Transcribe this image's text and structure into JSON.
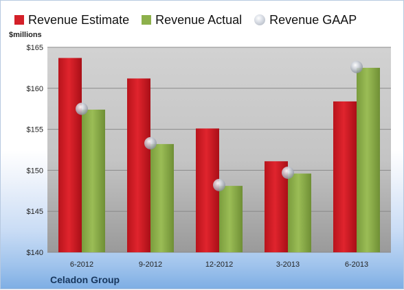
{
  "legend": {
    "estimate_label": "Revenue Estimate",
    "actual_label": "Revenue Actual",
    "gaap_label": "Revenue GAAP"
  },
  "unit_label": "$millions",
  "company_label": "Celadon Group",
  "colors": {
    "estimate": "#d42029",
    "actual": "#8db04b",
    "gaap": "#c4c8d0"
  },
  "chart_data": {
    "type": "bar",
    "categories": [
      "6-2012",
      "9-2012",
      "12-2012",
      "3-2013",
      "6-2013"
    ],
    "series": [
      {
        "name": "Revenue Estimate",
        "values": [
          163.7,
          161.2,
          155.1,
          151.1,
          158.4
        ]
      },
      {
        "name": "Revenue Actual",
        "values": [
          157.4,
          153.2,
          148.1,
          149.6,
          162.5
        ]
      },
      {
        "name": "Revenue GAAP",
        "type": "scatter",
        "values": [
          157.5,
          153.3,
          148.2,
          149.7,
          162.6
        ]
      }
    ],
    "ylabel": "$millions",
    "ylim": [
      140,
      165
    ],
    "yticks": [
      140,
      145,
      150,
      155,
      160,
      165
    ],
    "ytick_labels": [
      "$140",
      "$145",
      "$150",
      "$155",
      "$160",
      "$165"
    ],
    "grid": true,
    "legend_position": "top"
  }
}
